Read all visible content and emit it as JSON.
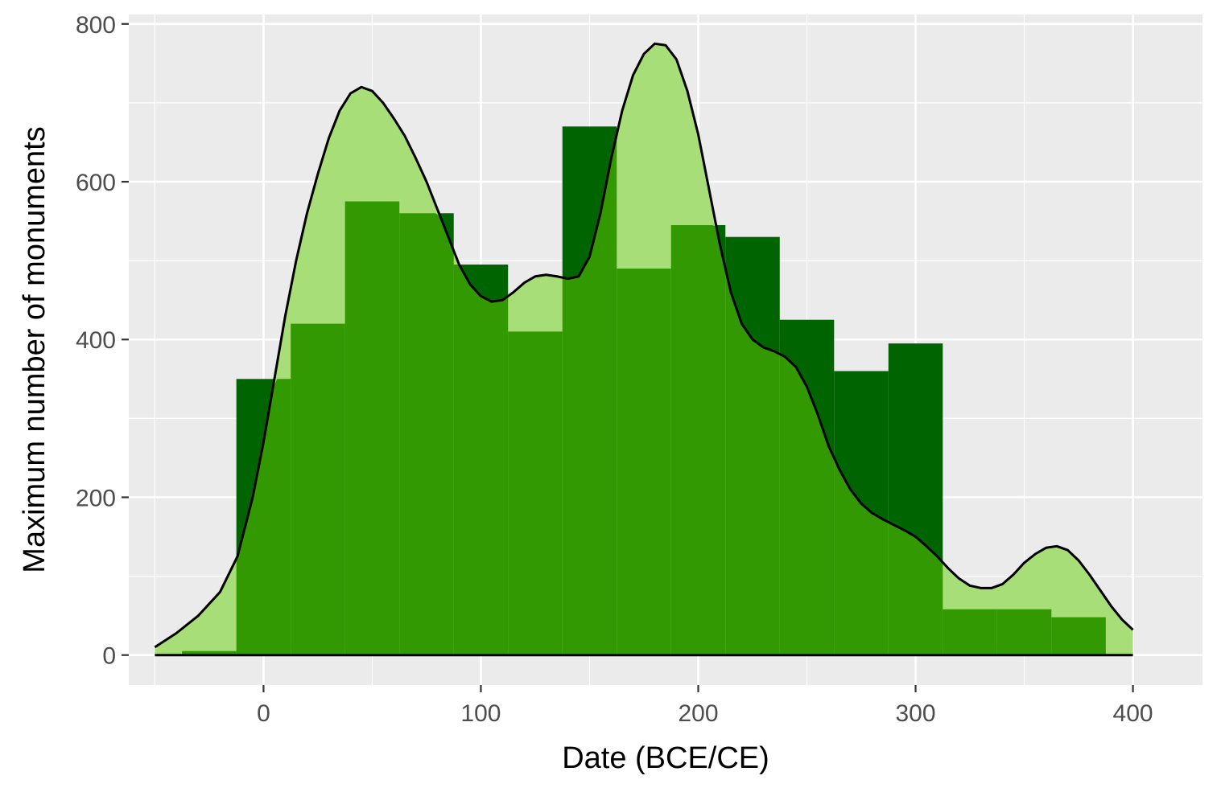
{
  "chart_data": {
    "type": "bar",
    "xlabel": "Date (BCE/CE)",
    "ylabel": "Maximum number of monuments",
    "xlim": [
      -62,
      432
    ],
    "ylim": [
      -38,
      812
    ],
    "x_ticks": [
      0,
      100,
      200,
      300,
      400
    ],
    "x_minor_ticks": [
      -50,
      50,
      150,
      250,
      350
    ],
    "y_ticks": [
      0,
      200,
      400,
      600,
      800
    ],
    "y_minor_ticks": [
      100,
      300,
      500,
      700
    ],
    "grid": true,
    "colors": {
      "panel_background": "#ebebeb",
      "grid": "#ffffff",
      "dark_bars": "#006400",
      "light_bars": "#a8de78",
      "overlap": "#339900",
      "density_line": "#000000"
    },
    "series": [
      {
        "bins": [
          {
            "x0": -37.5,
            "x1": -12.5,
            "value": 5
          },
          {
            "x0": -12.5,
            "x1": 12.5,
            "value": 350
          },
          {
            "x0": 12.5,
            "x1": 37.5,
            "value": 420
          },
          {
            "x0": 37.5,
            "x1": 62.5,
            "value": 575
          },
          {
            "x0": 62.5,
            "x1": 87.5,
            "value": 560
          },
          {
            "x0": 87.5,
            "x1": 112.5,
            "value": 495
          },
          {
            "x0": 112.5,
            "x1": 137.5,
            "value": 410
          },
          {
            "x0": 137.5,
            "x1": 162.5,
            "value": 670
          },
          {
            "x0": 162.5,
            "x1": 187.5,
            "value": 490
          },
          {
            "x0": 187.5,
            "x1": 212.5,
            "value": 545
          },
          {
            "x0": 212.5,
            "x1": 237.5,
            "value": 530
          },
          {
            "x0": 237.5,
            "x1": 262.5,
            "value": 425
          },
          {
            "x0": 262.5,
            "x1": 287.5,
            "value": 360
          },
          {
            "x0": 287.5,
            "x1": 312.5,
            "value": 395
          },
          {
            "x0": 312.5,
            "x1": 337.5,
            "value": 58
          },
          {
            "x0": 337.5,
            "x1": 362.5,
            "value": 58
          },
          {
            "x0": 362.5,
            "x1": 387.5,
            "value": 48
          }
        ]
      },
      {
        "type": "area",
        "points": [
          [
            -50,
            10
          ],
          [
            -40,
            28
          ],
          [
            -30,
            50
          ],
          [
            -20,
            80
          ],
          [
            -12,
            125
          ],
          [
            -5,
            200
          ],
          [
            0,
            270
          ],
          [
            5,
            350
          ],
          [
            10,
            430
          ],
          [
            15,
            500
          ],
          [
            20,
            560
          ],
          [
            25,
            610
          ],
          [
            30,
            655
          ],
          [
            35,
            690
          ],
          [
            40,
            712
          ],
          [
            45,
            720
          ],
          [
            50,
            715
          ],
          [
            55,
            700
          ],
          [
            60,
            680
          ],
          [
            65,
            658
          ],
          [
            70,
            630
          ],
          [
            75,
            600
          ],
          [
            80,
            565
          ],
          [
            85,
            530
          ],
          [
            90,
            495
          ],
          [
            95,
            470
          ],
          [
            100,
            455
          ],
          [
            105,
            448
          ],
          [
            110,
            450
          ],
          [
            115,
            460
          ],
          [
            120,
            472
          ],
          [
            125,
            480
          ],
          [
            130,
            482
          ],
          [
            135,
            480
          ],
          [
            140,
            477
          ],
          [
            145,
            480
          ],
          [
            150,
            505
          ],
          [
            155,
            560
          ],
          [
            160,
            630
          ],
          [
            165,
            690
          ],
          [
            170,
            735
          ],
          [
            175,
            762
          ],
          [
            180,
            775
          ],
          [
            185,
            773
          ],
          [
            190,
            755
          ],
          [
            195,
            715
          ],
          [
            200,
            660
          ],
          [
            205,
            590
          ],
          [
            210,
            520
          ],
          [
            215,
            460
          ],
          [
            220,
            420
          ],
          [
            225,
            400
          ],
          [
            230,
            390
          ],
          [
            235,
            385
          ],
          [
            240,
            378
          ],
          [
            245,
            365
          ],
          [
            250,
            340
          ],
          [
            255,
            305
          ],
          [
            260,
            265
          ],
          [
            265,
            235
          ],
          [
            270,
            210
          ],
          [
            275,
            192
          ],
          [
            280,
            180
          ],
          [
            285,
            172
          ],
          [
            290,
            165
          ],
          [
            295,
            158
          ],
          [
            300,
            150
          ],
          [
            305,
            138
          ],
          [
            310,
            125
          ],
          [
            315,
            110
          ],
          [
            320,
            97
          ],
          [
            325,
            88
          ],
          [
            330,
            85
          ],
          [
            335,
            85
          ],
          [
            340,
            90
          ],
          [
            345,
            102
          ],
          [
            350,
            117
          ],
          [
            355,
            128
          ],
          [
            360,
            136
          ],
          [
            365,
            138
          ],
          [
            370,
            133
          ],
          [
            375,
            120
          ],
          [
            380,
            102
          ],
          [
            385,
            82
          ],
          [
            390,
            62
          ],
          [
            395,
            45
          ],
          [
            400,
            32
          ]
        ]
      }
    ]
  }
}
